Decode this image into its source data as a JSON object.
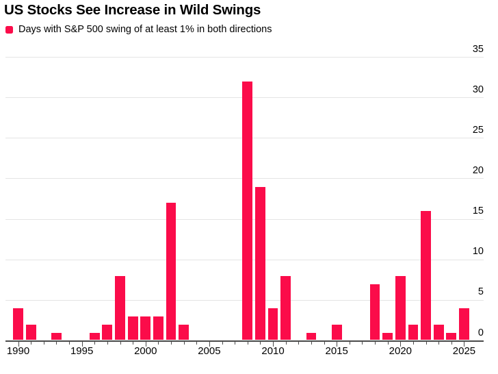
{
  "title": "US Stocks See Increase in Wild Swings",
  "legend": {
    "label": "Days with S&P 500 swing of at least 1% in both directions",
    "marker_color": "#fb0c4a"
  },
  "colors": {
    "bar": "#fb0c4a",
    "gridline": "#e4e4e4",
    "axis": "#4a4a4a",
    "text": "#000000",
    "background": "#ffffff"
  },
  "chart_data": {
    "type": "bar",
    "title": "US Stocks See Increase in Wild Swings",
    "series_name": "Days with S&P 500 swing of at least 1% in both directions",
    "x": [
      1990,
      1991,
      1992,
      1993,
      1994,
      1995,
      1996,
      1997,
      1998,
      1999,
      2000,
      2001,
      2002,
      2003,
      2004,
      2005,
      2006,
      2007,
      2008,
      2009,
      2010,
      2011,
      2012,
      2013,
      2014,
      2015,
      2016,
      2017,
      2018,
      2019,
      2020,
      2021,
      2022,
      2023,
      2024,
      2025
    ],
    "values": [
      4,
      2,
      0,
      1,
      0,
      0,
      1,
      2,
      8,
      3,
      3,
      3,
      17,
      2,
      0,
      0,
      0,
      0,
      32,
      19,
      4,
      8,
      0,
      1,
      0,
      2,
      0,
      0,
      7,
      1,
      8,
      2,
      16,
      2,
      1,
      4
    ],
    "xlabel": "",
    "ylabel": "",
    "ylim": [
      0,
      35
    ],
    "yticks": [
      0,
      5,
      10,
      15,
      20,
      25,
      30,
      35
    ],
    "xtick_labels": [
      1990,
      1995,
      2000,
      2005,
      2010,
      2015,
      2020,
      2025
    ],
    "grid": "horizontal",
    "y_axis_side": "right",
    "legend_position": "top-left"
  }
}
